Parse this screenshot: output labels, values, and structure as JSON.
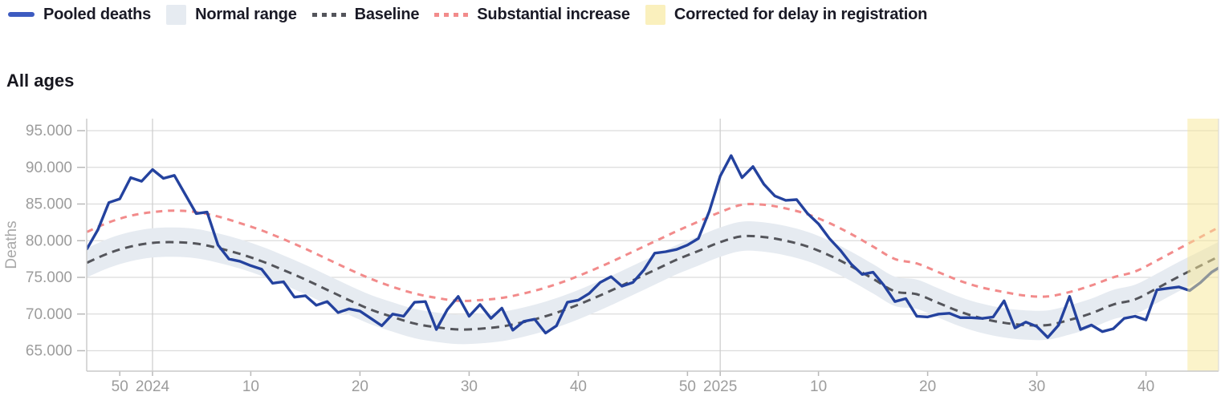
{
  "title": "All ages",
  "legend": {
    "items": [
      {
        "label": "Pooled deaths",
        "swatch": "line",
        "color": "#3d5bc0"
      },
      {
        "label": "Normal range",
        "swatch": "box",
        "color": "#e6ebf1"
      },
      {
        "label": "Baseline",
        "swatch": "dots",
        "color": "#54555b"
      },
      {
        "label": "Substantial increase",
        "swatch": "dots",
        "color": "#f28b8b"
      },
      {
        "label": "Corrected for delay in registration",
        "swatch": "box",
        "color": "#faf0bd"
      }
    ]
  },
  "colors": {
    "pooled": "#24429e",
    "baseline": "#54555b",
    "substantial": "#f28b8b",
    "normal_band": "#e6ebf1",
    "corrected": "#f7e795",
    "grid": "#dcdcdc",
    "year_grid": "#cfcfcf",
    "axis": "#c9c9c9"
  },
  "chart_data": {
    "type": "line",
    "title": "All ages",
    "ylabel": "Deaths",
    "x_start_week": "2023-W47",
    "x_weeks_total": 105,
    "ylim": [
      63500,
      96600
    ],
    "y_axis": {
      "label": "Deaths",
      "ticks": [
        {
          "v": 95000,
          "label": "95.000"
        },
        {
          "v": 90000,
          "label": "90.000"
        },
        {
          "v": 85000,
          "label": "85.000"
        },
        {
          "v": 80000,
          "label": "80.000"
        },
        {
          "v": 75000,
          "label": "75.000"
        },
        {
          "v": 70000,
          "label": "70.000"
        },
        {
          "v": 65000,
          "label": "65.000"
        }
      ]
    },
    "x_axis": {
      "ticks": [
        {
          "t": 3,
          "label": "50",
          "year": false
        },
        {
          "t": 6,
          "label": "2024",
          "year": true
        },
        {
          "t": 15,
          "label": "10",
          "year": false
        },
        {
          "t": 25,
          "label": "20",
          "year": false
        },
        {
          "t": 35,
          "label": "30",
          "year": false
        },
        {
          "t": 45,
          "label": "40",
          "year": false
        },
        {
          "t": 55,
          "label": "50",
          "year": false
        },
        {
          "t": 58,
          "label": "2025",
          "year": true
        },
        {
          "t": 67,
          "label": "10",
          "year": false
        },
        {
          "t": 77,
          "label": "20",
          "year": false
        },
        {
          "t": 87,
          "label": "30",
          "year": false
        },
        {
          "t": 97,
          "label": "40",
          "year": false
        }
      ]
    },
    "series": {
      "pooled_deaths": {
        "name": "Pooled deaths",
        "step_weeks": 1,
        "values": [
          78900,
          81500,
          85200,
          85700,
          88600,
          88100,
          89700,
          88500,
          88900,
          86300,
          83700,
          83900,
          79400,
          77500,
          77200,
          76600,
          76100,
          74200,
          74400,
          72300,
          72500,
          71200,
          71700,
          70200,
          70700,
          70400,
          69400,
          68400,
          70000,
          69700,
          71600,
          71700,
          67900,
          70600,
          72400,
          69700,
          71300,
          69400,
          70800,
          67800,
          69000,
          69300,
          67400,
          68400,
          71600,
          71900,
          72800,
          74300,
          75100,
          73800,
          74300,
          76000,
          78300,
          78500,
          78800,
          79400,
          80300,
          84000,
          88800,
          91600,
          88600,
          90100,
          87700,
          86100,
          85500,
          85600,
          83700,
          82300,
          80300,
          78700,
          76800,
          75400,
          75700,
          73900,
          71700,
          72100,
          69700,
          69600,
          70000,
          70100,
          69500,
          69500,
          69400,
          69600,
          71800,
          68100,
          68900,
          68300,
          66800,
          68500,
          72400,
          67900,
          68500,
          67600,
          68000,
          69400,
          69700,
          69200,
          73300,
          73500,
          73700,
          73200,
          74300,
          75700,
          76600
        ]
      },
      "baseline": {
        "name": "Baseline",
        "step_weeks": 2,
        "values": [
          77000,
          78300,
          79200,
          79700,
          79800,
          79600,
          79000,
          78200,
          77200,
          76000,
          74700,
          73300,
          71900,
          70600,
          69600,
          68700,
          68200,
          67900,
          68000,
          68300,
          68900,
          69700,
          70700,
          71900,
          73200,
          74600,
          76000,
          77400,
          78600,
          79800,
          80600,
          80500,
          80000,
          79200,
          78000,
          76500,
          74800,
          73100,
          72700,
          71500,
          70300,
          69400,
          68800,
          68500,
          68500,
          69200,
          70100,
          71300,
          72000,
          73500,
          75100,
          76600,
          78100
        ]
      },
      "substantial_increase": {
        "name": "Substantial increase",
        "step_weeks": 2,
        "values": [
          81200,
          82500,
          83400,
          83900,
          84100,
          83900,
          83300,
          82400,
          81400,
          80200,
          78900,
          77500,
          76100,
          74800,
          73700,
          72800,
          72200,
          71800,
          71900,
          72200,
          72800,
          73600,
          74600,
          75800,
          77100,
          78500,
          79900,
          81300,
          82600,
          83900,
          84900,
          84900,
          84400,
          83600,
          82400,
          80900,
          79200,
          77500,
          76900,
          75700,
          74500,
          73600,
          73000,
          72500,
          72400,
          73000,
          73900,
          75000,
          75800,
          77300,
          78900,
          80500,
          82100
        ]
      },
      "normal_range": {
        "name": "Normal range",
        "step_weeks": 2,
        "upper": [
          79000,
          80300,
          81200,
          81700,
          81800,
          81600,
          81000,
          80200,
          79200,
          78000,
          76700,
          75300,
          73900,
          72600,
          71600,
          70700,
          70200,
          69900,
          70000,
          70300,
          70900,
          71700,
          72700,
          73900,
          75200,
          76600,
          78000,
          79400,
          80600,
          81800,
          82600,
          82500,
          82000,
          81200,
          80000,
          78500,
          76800,
          75100,
          74700,
          73500,
          72300,
          71400,
          70800,
          70500,
          70500,
          71200,
          72100,
          73300,
          74000,
          75500,
          77100,
          78600,
          80100
        ],
        "lower": [
          75000,
          76300,
          77200,
          77700,
          77800,
          77600,
          77000,
          76200,
          75200,
          74000,
          72700,
          71300,
          69900,
          68600,
          67600,
          66700,
          66200,
          65900,
          66000,
          66300,
          66900,
          67700,
          68700,
          69900,
          71200,
          72600,
          74000,
          75400,
          76600,
          77800,
          78600,
          78500,
          78000,
          77200,
          76000,
          74500,
          72800,
          71100,
          70700,
          69500,
          68300,
          67400,
          66800,
          66500,
          66500,
          67200,
          68100,
          69300,
          70000,
          71500,
          73100,
          74600,
          76100
        ]
      }
    },
    "corrected_region": {
      "name": "Corrected for delay in registration",
      "from_t": 100.8,
      "to_t": 103.7,
      "weeks_covered": "last 3 weeks"
    },
    "legend_position": "top",
    "grid": true
  }
}
